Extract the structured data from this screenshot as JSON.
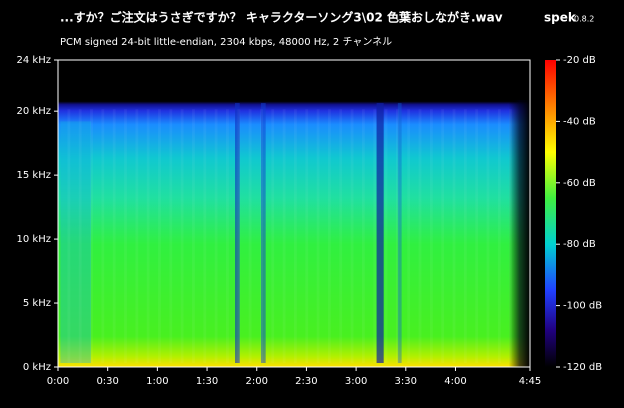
{
  "chart_data": {
    "type": "spectrogram",
    "title": "...すか？ご注文はうさぎですか？ キャラクターソング3\\02 色葉おしながき.wav",
    "app": "spek",
    "version": "0.8.2",
    "subtitle": "PCM signed 24-bit little-endian, 2304 kbps, 48000 Hz, 2 チャンネル",
    "xlim": [
      0,
      285
    ],
    "xticks": [
      {
        "value": 0,
        "label": "0:00"
      },
      {
        "value": 30,
        "label": "0:30"
      },
      {
        "value": 60,
        "label": "1:00"
      },
      {
        "value": 90,
        "label": "1:30"
      },
      {
        "value": 120,
        "label": "2:00"
      },
      {
        "value": 150,
        "label": "2:30"
      },
      {
        "value": 180,
        "label": "3:00"
      },
      {
        "value": 210,
        "label": "3:30"
      },
      {
        "value": 240,
        "label": "4:00"
      },
      {
        "value": 285,
        "label": "4:45"
      }
    ],
    "ylim": [
      0,
      24
    ],
    "yticks": [
      {
        "value": 0,
        "label": "0 kHz"
      },
      {
        "value": 5,
        "label": "5 kHz"
      },
      {
        "value": 10,
        "label": "10 kHz"
      },
      {
        "value": 15,
        "label": "15 kHz"
      },
      {
        "value": 20,
        "label": "20 kHz"
      },
      {
        "value": 24,
        "label": "24 kHz"
      }
    ],
    "colorbar": {
      "lim": [
        -120,
        -20
      ],
      "ticks": [
        {
          "value": -20,
          "label": "-20 dB"
        },
        {
          "value": -40,
          "label": "-40 dB"
        },
        {
          "value": -60,
          "label": "-60 dB"
        },
        {
          "value": -80,
          "label": "-80 dB"
        },
        {
          "value": -100,
          "label": "-100 dB"
        },
        {
          "value": -120,
          "label": "-120 dB"
        }
      ]
    }
  }
}
